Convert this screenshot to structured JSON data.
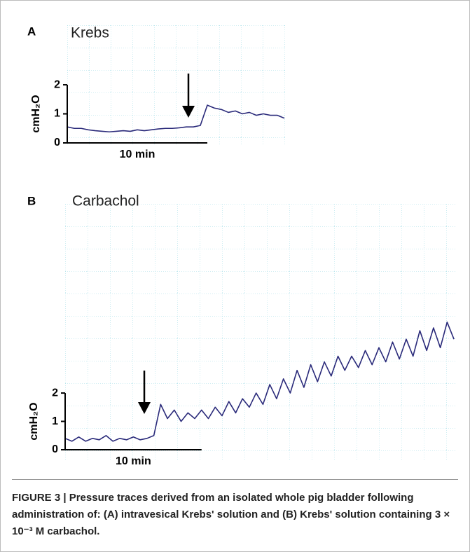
{
  "chart_data": [
    {
      "type": "line",
      "panel": "A",
      "title": "Krebs",
      "ylabel": "cmH₂O",
      "x": [
        0,
        0.5,
        1,
        1.5,
        2,
        2.5,
        3,
        3.5,
        4,
        4.5,
        5,
        5.5,
        6,
        6.5,
        7,
        7.5,
        8,
        8.5,
        9,
        9.5,
        10,
        10.5,
        11,
        11.5,
        12,
        12.5,
        13,
        13.5,
        14,
        14.5,
        15,
        15.5
      ],
      "values": [
        0.55,
        0.5,
        0.5,
        0.45,
        0.42,
        0.4,
        0.38,
        0.4,
        0.42,
        0.4,
        0.45,
        0.42,
        0.45,
        0.48,
        0.5,
        0.5,
        0.52,
        0.55,
        0.55,
        0.6,
        1.3,
        1.2,
        1.15,
        1.05,
        1.1,
        1.0,
        1.05,
        0.95,
        1.0,
        0.95,
        0.95,
        0.85
      ],
      "color": "#2a2a7a",
      "xlim": [
        0,
        15.65
      ],
      "ylim": [
        0,
        4.05
      ],
      "yticks": [
        0,
        1,
        2
      ],
      "scale_bar": {
        "value": 10,
        "label": "10 min"
      }
    },
    {
      "type": "line",
      "panel": "B",
      "title": "Carbachol",
      "ylabel": "cmH₂O",
      "x": [
        0,
        0.5,
        1,
        1.5,
        2,
        2.5,
        3,
        3.5,
        4,
        4.5,
        5,
        5.5,
        6,
        6.5,
        7,
        7.5,
        8,
        8.5,
        9,
        9.5,
        10,
        10.5,
        11,
        11.5,
        12,
        12.5,
        13,
        13.5,
        14,
        14.5,
        15,
        15.5,
        16,
        16.5,
        17,
        17.5,
        18,
        18.5,
        19,
        19.5,
        20,
        20.5,
        21,
        21.5,
        22,
        22.5,
        23,
        23.5,
        24,
        24.5,
        25,
        25.5,
        26,
        26.5,
        27,
        27.5,
        28,
        28.5
      ],
      "values": [
        0.4,
        0.3,
        0.45,
        0.3,
        0.4,
        0.35,
        0.5,
        0.3,
        0.4,
        0.35,
        0.45,
        0.35,
        0.4,
        0.5,
        1.6,
        1.1,
        1.4,
        1.0,
        1.3,
        1.1,
        1.4,
        1.1,
        1.5,
        1.2,
        1.7,
        1.3,
        1.8,
        1.5,
        2.0,
        1.6,
        2.3,
        1.8,
        2.5,
        2.0,
        2.8,
        2.2,
        3.0,
        2.4,
        3.1,
        2.6,
        3.3,
        2.8,
        3.3,
        2.9,
        3.5,
        3.0,
        3.6,
        3.1,
        3.8,
        3.2,
        3.9,
        3.3,
        4.2,
        3.5,
        4.3,
        3.6,
        4.5,
        3.9
      ],
      "color": "#2a2a7a",
      "xlim": [
        0,
        28.7
      ],
      "ylim": [
        0,
        8.7
      ],
      "yticks": [
        0,
        1,
        2
      ],
      "scale_bar": {
        "value": 10,
        "label": "10 min"
      }
    }
  ],
  "caption": {
    "label": "FIGURE 3 |",
    "text": "Pressure traces derived from an isolated whole pig bladder following administration of: (A) intravesical Krebs' solution and (B) Krebs' solution containing 3 × 10⁻³ M carbachol."
  }
}
